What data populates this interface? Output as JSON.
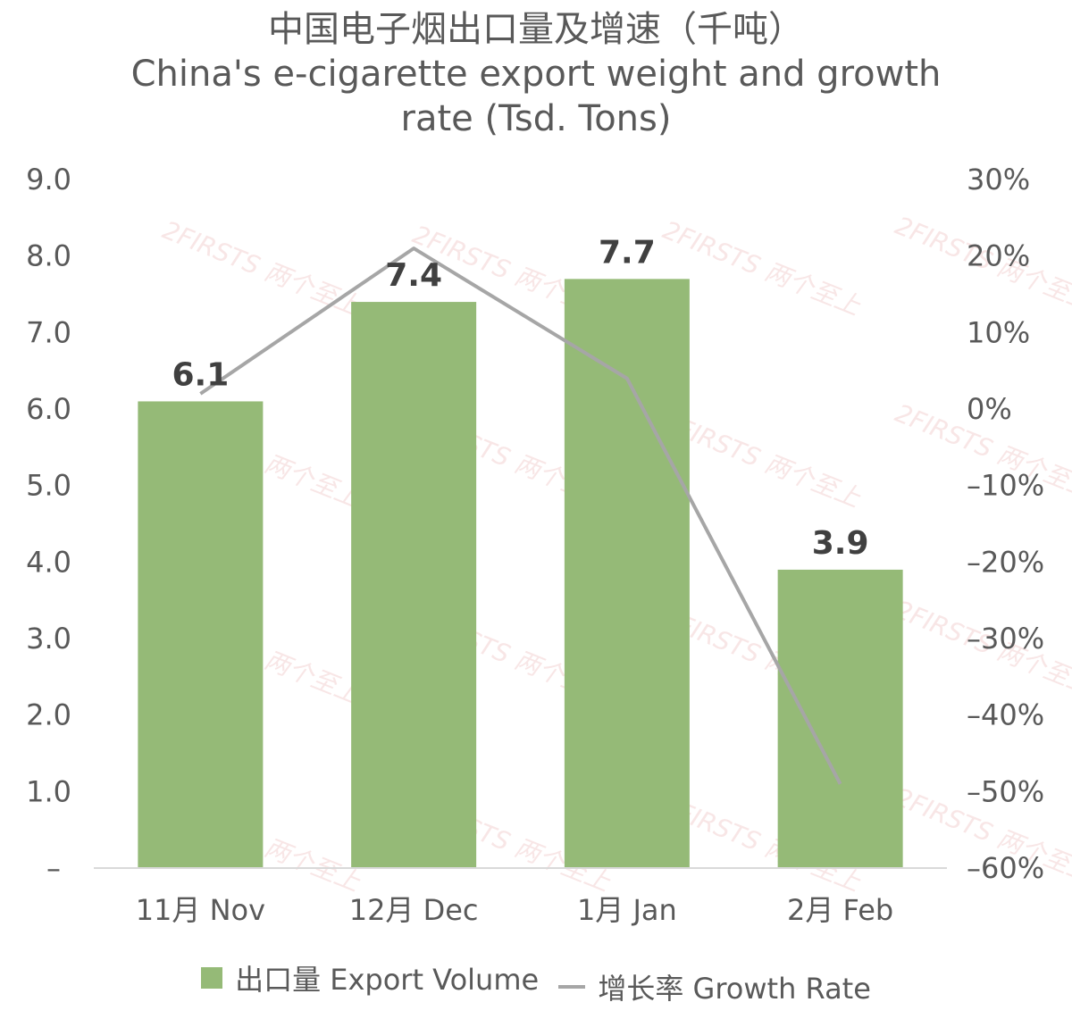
{
  "chart_data": {
    "type": "bar",
    "title_lines": [
      "中国电子烟出口量及增速（千吨）",
      "China's e-cigarette export weight and growth",
      "rate (Tsd. Tons)"
    ],
    "categories": [
      "11月 Nov",
      "12月 Dec",
      "1月 Jan",
      "2月 Feb"
    ],
    "series": [
      {
        "name": "出口量 Export Volume",
        "type": "bar",
        "axis": "left",
        "color": "#95ba77",
        "values": [
          6.1,
          7.4,
          7.7,
          3.9
        ],
        "labels": [
          "6.1",
          "7.4",
          "7.7",
          "3.9"
        ]
      },
      {
        "name": "增长率 Growth Rate",
        "type": "line",
        "axis": "right",
        "color": "#a6a6a6",
        "values": [
          2,
          21,
          4,
          -49
        ]
      }
    ],
    "left_axis": {
      "ylim": [
        0,
        9
      ],
      "ticks": [
        "–",
        "1.0",
        "2.0",
        "3.0",
        "4.0",
        "5.0",
        "6.0",
        "7.0",
        "8.0",
        "9.0"
      ]
    },
    "right_axis": {
      "ylim": [
        -60,
        30
      ],
      "ticks": [
        "-60%",
        "-50%",
        "-40%",
        "-30%",
        "-20%",
        "-10%",
        "0%",
        "10%",
        "20%",
        "30%"
      ]
    },
    "legend_position": "bottom",
    "grid": false
  },
  "watermark": "2FIRSTS 两个至上"
}
